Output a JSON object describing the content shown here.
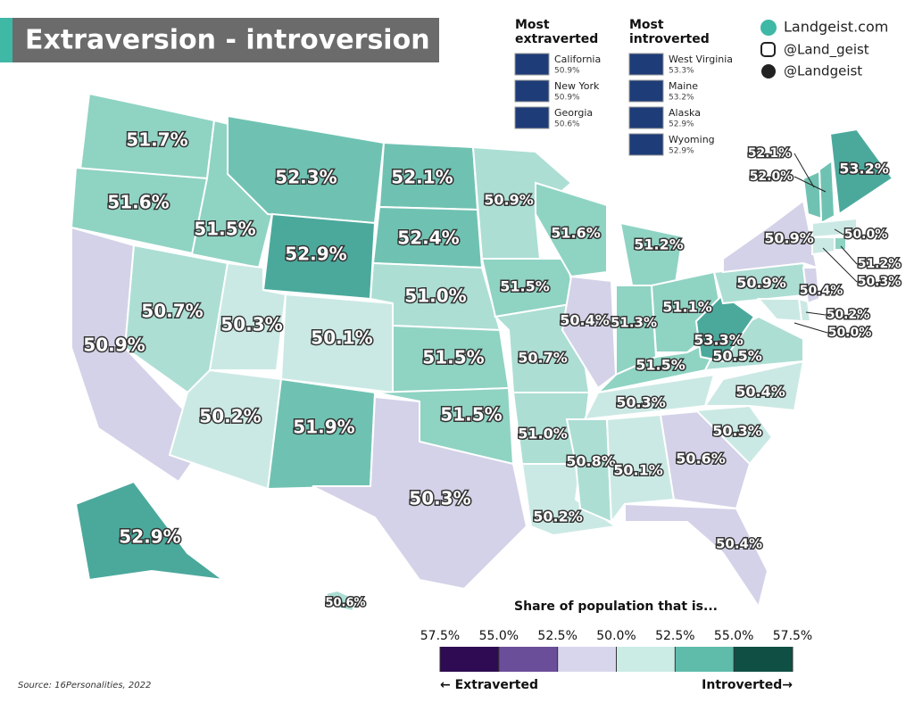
{
  "header": {
    "title": "Extraversion - introversion",
    "site": "Landgeist.com",
    "instagram": "@Land_geist",
    "twitter": "@Landgeist"
  },
  "top_lists": [
    {
      "title": "Most extraverted",
      "items": [
        {
          "name": "California",
          "value": "50.9%"
        },
        {
          "name": "New York",
          "value": "50.9%"
        },
        {
          "name": "Georgia",
          "value": "50.6%"
        }
      ]
    },
    {
      "title": "Most introverted",
      "items": [
        {
          "name": "West Virginia",
          "value": "53.3%"
        },
        {
          "name": "Maine",
          "value": "53.2%"
        },
        {
          "name": "Alaska",
          "value": "52.9%"
        },
        {
          "name": "Wyoming",
          "value": "52.9%"
        }
      ]
    }
  ],
  "states": [
    {
      "label": "51.7%",
      "color": "#8fd3c3"
    },
    {
      "label": "51.6%",
      "color": "#8fd3c3"
    },
    {
      "label": "50.9%",
      "color": "#d4d2e8"
    },
    {
      "label": "50.7%",
      "color": "#acded4"
    },
    {
      "label": "51.5%",
      "color": "#8fd3c3"
    },
    {
      "label": "52.3%",
      "color": "#6fc2b2"
    },
    {
      "label": "52.9%",
      "color": "#4ba99c"
    },
    {
      "label": "50.3%",
      "color": "#cbe9e4"
    },
    {
      "label": "50.1%",
      "color": "#cbe9e4"
    },
    {
      "label": "50.2%",
      "color": "#cbe9e4"
    },
    {
      "label": "51.9%",
      "color": "#6fc2b2"
    },
    {
      "label": "52.1%",
      "color": "#6fc2b2"
    },
    {
      "label": "52.4%",
      "color": "#6fc2b2"
    },
    {
      "label": "51.0%",
      "color": "#acded4"
    },
    {
      "label": "51.5%",
      "color": "#8fd3c3"
    },
    {
      "label": "51.5%",
      "color": "#8fd3c3"
    },
    {
      "label": "50.3%",
      "color": "#d4d2e8"
    },
    {
      "label": "50.9%",
      "color": "#acded4"
    },
    {
      "label": "51.5%",
      "color": "#8fd3c3"
    },
    {
      "label": "50.7%",
      "color": "#acded4"
    },
    {
      "label": "51.0%",
      "color": "#acded4"
    },
    {
      "label": "50.2%",
      "color": "#cbe9e4"
    },
    {
      "label": "51.6%",
      "color": "#8fd3c3"
    },
    {
      "label": "50.4%",
      "color": "#d4d2e8"
    },
    {
      "label": "51.2%",
      "color": "#8fd3c3"
    },
    {
      "label": "51.3%",
      "color": "#8fd3c3"
    },
    {
      "label": "51.1%",
      "color": "#8fd3c3"
    },
    {
      "label": "51.5%",
      "color": "#8fd3c3"
    },
    {
      "label": "50.3%",
      "color": "#cbe9e4"
    },
    {
      "label": "50.8%",
      "color": "#acded4"
    },
    {
      "label": "50.1%",
      "color": "#cbe9e4"
    },
    {
      "label": "50.6%",
      "color": "#d4d2e8"
    },
    {
      "label": "50.4%",
      "color": "#d4d2e8"
    },
    {
      "label": "50.3%",
      "color": "#cbe9e4"
    },
    {
      "label": "50.4%",
      "color": "#cbe9e4"
    },
    {
      "label": "50.5%",
      "color": "#acded4"
    },
    {
      "label": "53.3%",
      "color": "#4ba99c"
    },
    {
      "label": "50.9%",
      "color": "#acded4"
    },
    {
      "label": "50.9%",
      "color": "#d4d2e8"
    },
    {
      "label": "53.2%",
      "color": "#4ba99c"
    },
    {
      "label": "52.0%",
      "color": "#6fc2b2"
    },
    {
      "label": "52.1%",
      "color": "#6fc2b2"
    },
    {
      "label": "50.0%",
      "color": "#cbe9e4"
    },
    {
      "label": "51.2%",
      "color": "#8fd3c3"
    },
    {
      "label": "50.3%",
      "color": "#cbe9e4"
    },
    {
      "label": "50.4%",
      "color": "#d4d2e8"
    },
    {
      "label": "50.2%",
      "color": "#cbe9e4"
    },
    {
      "label": "50.0%",
      "color": "#cbe9e4"
    },
    {
      "label": "52.9%",
      "color": "#4ba99c"
    },
    {
      "label": "50.6%",
      "color": "#acded4"
    }
  ],
  "legend": {
    "title": "Share of population that is...",
    "ticks": [
      "57.5%",
      "55.0%",
      "52.5%",
      "50.0%",
      "52.5%",
      "55.0%",
      "57.5%"
    ],
    "colors": [
      "#2e0b52",
      "#6b4e9a",
      "#d8d6ec",
      "#cbece5",
      "#5fbcab",
      "#0f4f44"
    ],
    "left": "Extraverted",
    "right": "Introverted"
  },
  "source": "Source: 16Personalities, 2022"
}
